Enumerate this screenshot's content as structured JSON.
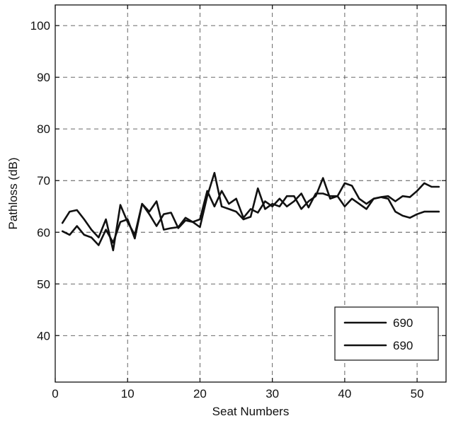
{
  "chart_data": {
    "type": "line",
    "title": "",
    "xlabel": "Seat Numbers",
    "ylabel": "Pathloss (dB)",
    "xlim": [
      0,
      54
    ],
    "ylim": [
      31,
      104
    ],
    "xticks": [
      0,
      10,
      20,
      30,
      40,
      50
    ],
    "yticks": [
      40,
      50,
      60,
      70,
      80,
      90,
      100
    ],
    "grid": true,
    "legend_position": "bottom-right",
    "series": [
      {
        "name": "690",
        "x": [
          1,
          2,
          3,
          4,
          5,
          6,
          7,
          8,
          9,
          10,
          11,
          12,
          13,
          14,
          15,
          16,
          17,
          18,
          19,
          20,
          21,
          22,
          23,
          24,
          25,
          26,
          27,
          28,
          29,
          30,
          31,
          32,
          33,
          34,
          35,
          36,
          37,
          38,
          39,
          40,
          41,
          42,
          43,
          44,
          45,
          46,
          47,
          48,
          49,
          50,
          51,
          52,
          53
        ],
        "values": [
          61.8,
          64.0,
          64.3,
          62.5,
          60.5,
          59.0,
          62.5,
          56.5,
          65.3,
          62.0,
          59.5,
          65.5,
          64.0,
          66.0,
          60.5,
          60.8,
          61.0,
          62.8,
          62.0,
          61.0,
          67.0,
          71.5,
          65.0,
          64.5,
          64.0,
          62.5,
          63.0,
          68.5,
          64.5,
          65.5,
          65.0,
          67.0,
          67.0,
          64.5,
          66.0,
          67.0,
          70.5,
          66.5,
          67.0,
          69.5,
          69.0,
          66.5,
          65.5,
          66.5,
          66.8,
          66.5,
          64.0,
          63.2,
          62.8,
          63.5,
          64.0,
          64.0,
          64.0
        ]
      },
      {
        "name": "690",
        "x": [
          1,
          2,
          3,
          4,
          5,
          6,
          7,
          8,
          9,
          10,
          11,
          12,
          13,
          14,
          15,
          16,
          17,
          18,
          19,
          20,
          21,
          22,
          23,
          24,
          25,
          26,
          27,
          28,
          29,
          30,
          31,
          32,
          33,
          34,
          35,
          36,
          37,
          38,
          39,
          40,
          41,
          42,
          43,
          44,
          45,
          46,
          47,
          48,
          49,
          50,
          51,
          52,
          53
        ],
        "values": [
          60.2,
          59.5,
          61.2,
          59.5,
          59.0,
          57.5,
          60.5,
          58.0,
          62.0,
          62.5,
          58.8,
          65.5,
          63.5,
          61.2,
          63.5,
          63.8,
          60.8,
          62.3,
          62.0,
          62.5,
          68.0,
          65.0,
          68.0,
          65.5,
          66.5,
          62.8,
          64.5,
          63.8,
          66.0,
          65.0,
          66.5,
          65.0,
          66.0,
          67.5,
          64.8,
          67.5,
          67.5,
          67.0,
          67.0,
          65.0,
          66.5,
          65.5,
          64.5,
          66.5,
          66.8,
          67.0,
          66.0,
          67.0,
          66.8,
          68.0,
          69.5,
          68.8,
          68.8
        ]
      }
    ]
  }
}
